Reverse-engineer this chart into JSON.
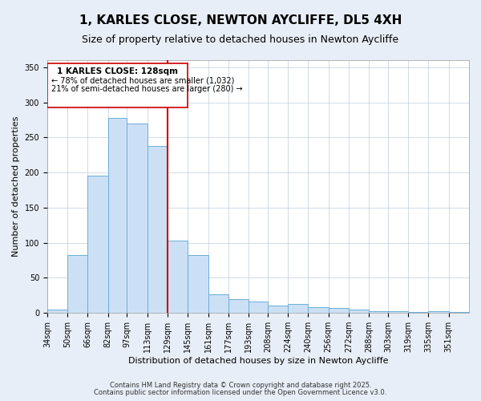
{
  "title": "1, KARLES CLOSE, NEWTON AYCLIFFE, DL5 4XH",
  "subtitle": "Size of property relative to detached houses in Newton Aycliffe",
  "xlabel": "Distribution of detached houses by size in Newton Aycliffe",
  "ylabel": "Number of detached properties",
  "bar_labels": [
    "34sqm",
    "50sqm",
    "66sqm",
    "82sqm",
    "97sqm",
    "113sqm",
    "129sqm",
    "145sqm",
    "161sqm",
    "177sqm",
    "193sqm",
    "208sqm",
    "224sqm",
    "240sqm",
    "256sqm",
    "272sqm",
    "288sqm",
    "303sqm",
    "319sqm",
    "335sqm",
    "351sqm"
  ],
  "bar_values": [
    5,
    83,
    195,
    278,
    270,
    238,
    103,
    83,
    27,
    20,
    16,
    10,
    13,
    8,
    7,
    5,
    3,
    3,
    1,
    2,
    1
  ],
  "bar_color": "#cce0f5",
  "bar_edge_color": "#6baed6",
  "vline_color": "#cc0000",
  "annotation_title": "1 KARLES CLOSE: 128sqm",
  "annotation_line1": "← 78% of detached houses are smaller (1,032)",
  "annotation_line2": "21% of semi-detached houses are larger (280) →",
  "annotation_box_edge": "#cc0000",
  "ylim": [
    0,
    360
  ],
  "yticks": [
    0,
    50,
    100,
    150,
    200,
    250,
    300,
    350
  ],
  "footnote1": "Contains HM Land Registry data © Crown copyright and database right 2025.",
  "footnote2": "Contains public sector information licensed under the Open Government Licence v3.0.",
  "bg_color": "#e8eef7",
  "plot_bg_color": "#ffffff",
  "title_fontsize": 11,
  "subtitle_fontsize": 9,
  "axis_label_fontsize": 8,
  "tick_fontsize": 7,
  "footnote_fontsize": 6
}
